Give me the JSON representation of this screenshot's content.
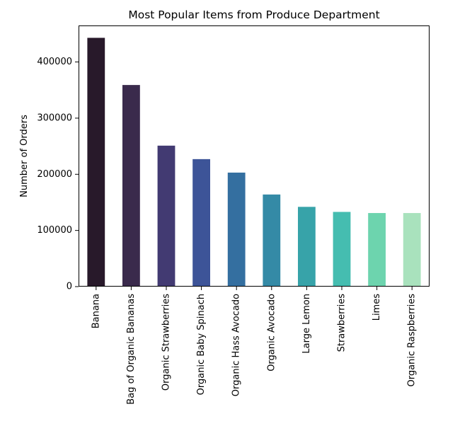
{
  "chart_data": {
    "type": "bar",
    "title": "Most Popular Items from Produce Department",
    "xlabel": "",
    "ylabel": "Number of Orders",
    "ylim": [
      0,
      465000
    ],
    "yticks": [
      0,
      100000,
      200000,
      300000,
      400000
    ],
    "ytick_labels": [
      "0",
      "100000",
      "200000",
      "300000",
      "400000"
    ],
    "grid": false,
    "legend": "none",
    "categories": [
      "Banana",
      "Bag of Organic Bananas",
      "Organic Strawberries",
      "Organic Baby Spinach",
      "Organic Hass Avocado",
      "Organic Avocado",
      "Large Lemon",
      "Strawberries",
      "Limes",
      "Organic Raspberries"
    ],
    "values": [
      443000,
      359000,
      251000,
      227000,
      203000,
      164000,
      142000,
      133000,
      131000,
      131000
    ],
    "colors": [
      "#28192a",
      "#3a2a4c",
      "#423a72",
      "#3d5498",
      "#346fa0",
      "#348aa6",
      "#37a3a9",
      "#45bdb0",
      "#6dd4ae",
      "#a9e2bd"
    ]
  }
}
